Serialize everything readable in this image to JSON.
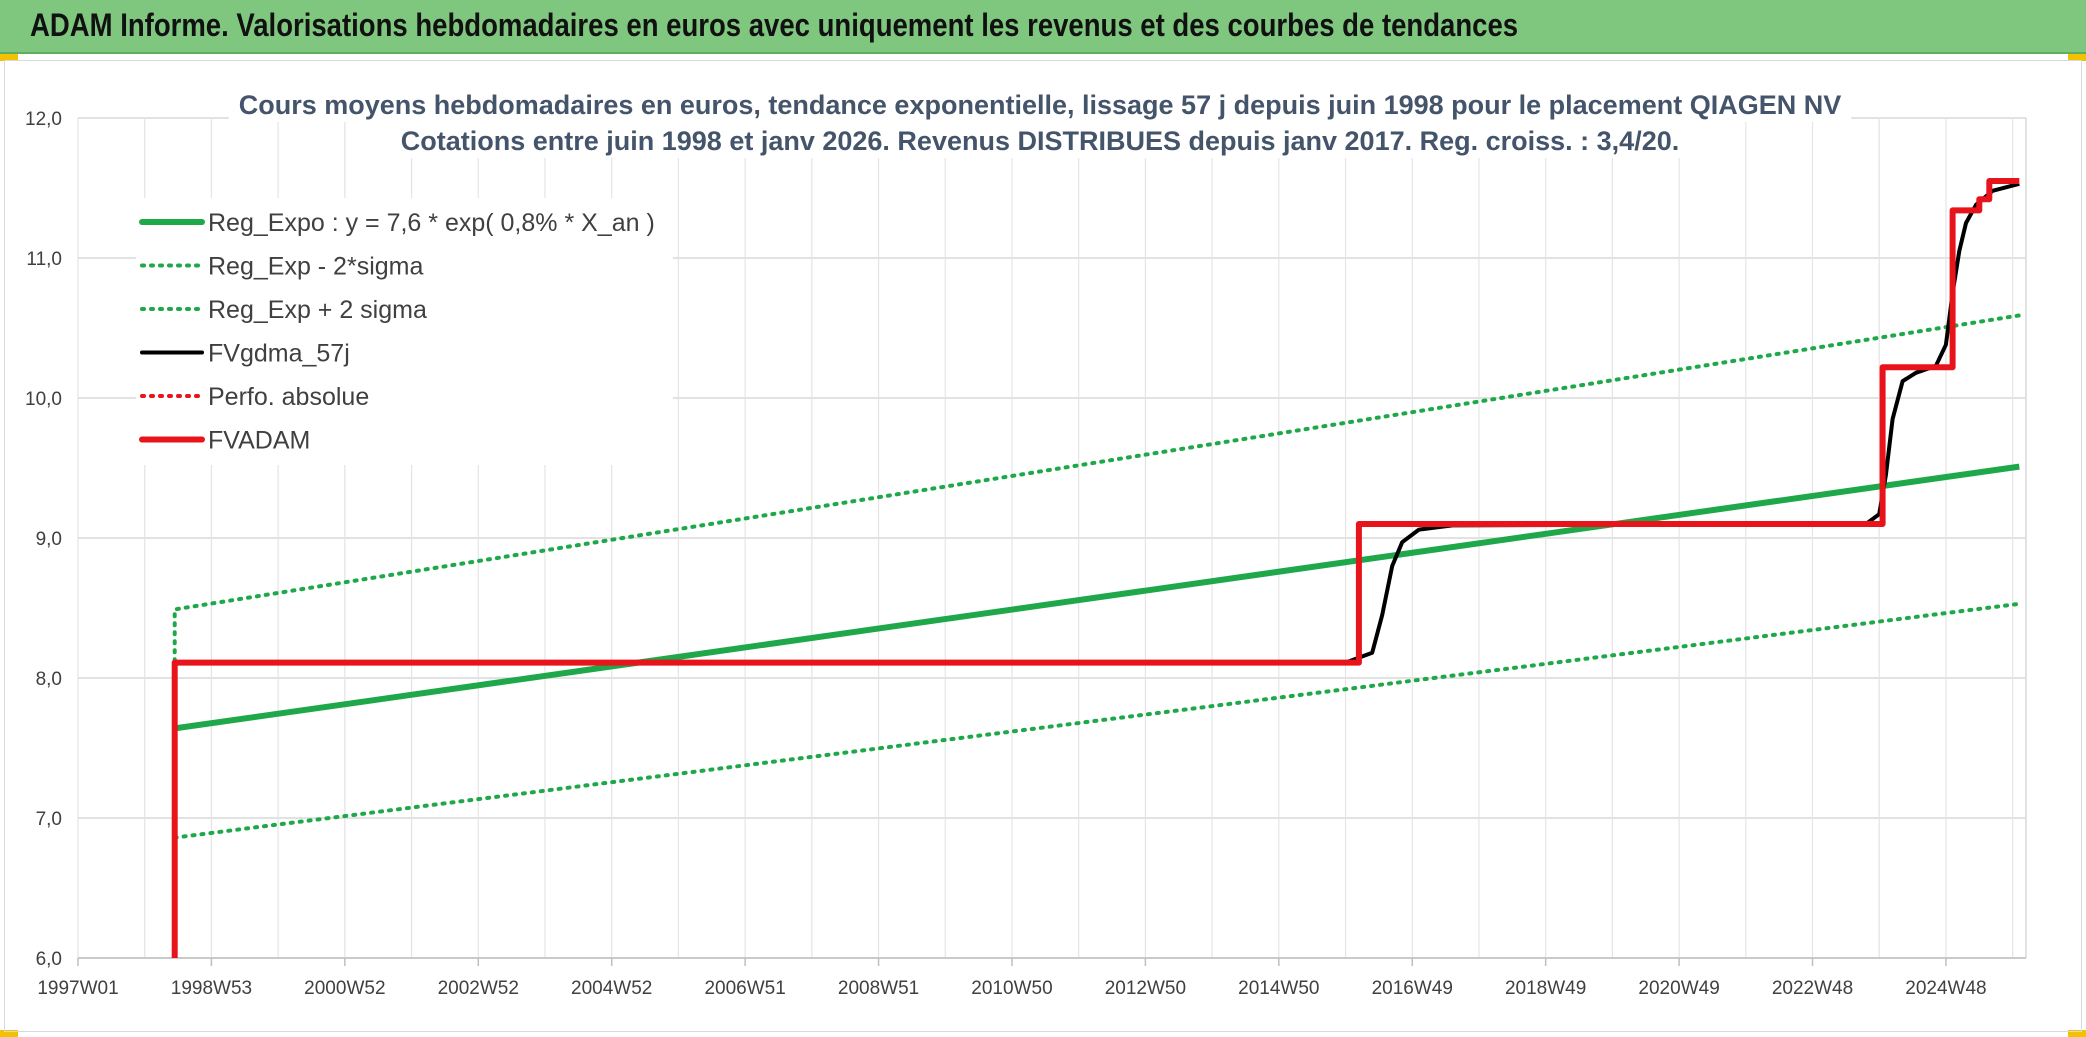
{
  "header": {
    "title": "ADAM Informe. Valorisations hebdomadaires en euros avec uniquement les revenus et des courbes de tendances"
  },
  "colors": {
    "banner": "#7fc77f",
    "trend_green": "#1fa84a",
    "fvgdma_black": "#000000",
    "fvadam_red": "#e8141b",
    "perfo_red": "#e8141b",
    "title_text": "#44546a"
  },
  "chart_data": {
    "type": "line",
    "title_lines": [
      "Cours moyens hebdomadaires en euros, tendance exponentielle, lissage 57 j depuis juin 1998 pour le placement QIAGEN NV",
      "Cotations entre juin 1998 et janv 2026. Revenus DISTRIBUES depuis janv 2017. Reg. croiss. : 3,4/20."
    ],
    "xlabel": "",
    "ylabel": "",
    "x_unit": "years (fractional)",
    "xlim": [
      1997.0,
      2026.2
    ],
    "ylim": [
      6.0,
      12.0
    ],
    "y_ticks": [
      6.0,
      7.0,
      8.0,
      9.0,
      10.0,
      11.0,
      12.0
    ],
    "y_tick_labels": [
      "6,0",
      "7,0",
      "8,0",
      "9,0",
      "10,0",
      "11,0",
      "12,0"
    ],
    "x_tick_labels": [
      "1997W01",
      "1998W53",
      "2000W52",
      "2002W52",
      "2004W52",
      "2006W51",
      "2008W51",
      "2010W50",
      "2012W50",
      "2014W50",
      "2016W49",
      "2018W49",
      "2020W49",
      "2022W48",
      "2024W48"
    ],
    "x_tick_values": [
      1997.0,
      1999.0,
      2001.0,
      2003.0,
      2005.0,
      2007.0,
      2009.0,
      2011.0,
      2013.0,
      2015.0,
      2017.0,
      2019.0,
      2021.0,
      2023.0,
      2025.0
    ],
    "grid": "vertical and horizontal",
    "legend_position": "top-left",
    "series": [
      {
        "name": "Reg_Expo : y = 7,6 * exp( 0,8% *  X_an )",
        "style": "solid",
        "color": "#1fa84a",
        "width": 6,
        "x": [
          1998.45,
          2026.1
        ],
        "y": [
          7.64,
          9.51
        ]
      },
      {
        "name": "Reg_Exp - 2*sigma",
        "style": "dotted",
        "color": "#1fa84a",
        "width": 4,
        "x": [
          1998.45,
          2026.1
        ],
        "y": [
          6.86,
          8.53
        ]
      },
      {
        "name": "Reg_Exp + 2 sigma",
        "style": "dotted",
        "color": "#1fa84a",
        "width": 4,
        "x": [
          1998.45,
          1998.45,
          2026.1
        ],
        "y": [
          8.12,
          8.49,
          10.59
        ]
      },
      {
        "name": "FVgdma_57j",
        "style": "solid",
        "color": "#000000",
        "width": 4,
        "x": [
          1998.45,
          2016.0,
          2016.4,
          2016.55,
          2016.7,
          2016.85,
          2017.1,
          2017.6,
          2023.8,
          2024.0,
          2024.1,
          2024.2,
          2024.35,
          2024.55,
          2024.85,
          2025.0,
          2025.1,
          2025.2,
          2025.3,
          2025.45,
          2025.7,
          2026.1
        ],
        "y": [
          8.11,
          8.11,
          8.18,
          8.45,
          8.8,
          8.97,
          9.06,
          9.09,
          9.1,
          9.17,
          9.45,
          9.85,
          10.12,
          10.18,
          10.23,
          10.38,
          10.75,
          11.05,
          11.25,
          11.38,
          11.48,
          11.53
        ]
      },
      {
        "name": "Perfo. absolue",
        "style": "dotted",
        "color": "#e8141b",
        "width": 4,
        "x": [],
        "y": []
      },
      {
        "name": "FVADAM",
        "style": "solid",
        "color": "#e8141b",
        "width": 6,
        "x": [
          1998.45,
          1998.45,
          2016.2,
          2016.2,
          2024.05,
          2024.05,
          2025.1,
          2025.1,
          2025.5,
          2025.5,
          2025.65,
          2025.65,
          2026.1
        ],
        "y": [
          6.0,
          8.11,
          8.11,
          9.1,
          9.1,
          10.22,
          10.22,
          11.34,
          11.34,
          11.42,
          11.42,
          11.55,
          11.55
        ]
      }
    ]
  }
}
